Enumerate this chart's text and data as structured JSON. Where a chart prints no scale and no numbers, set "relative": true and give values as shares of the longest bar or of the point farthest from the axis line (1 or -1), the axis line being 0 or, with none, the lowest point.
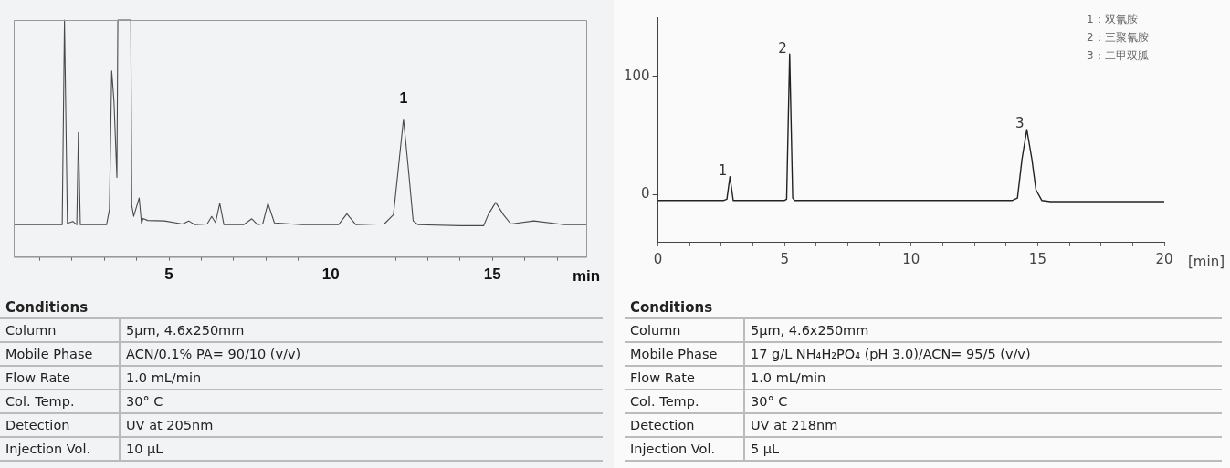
{
  "chart_data": [
    {
      "type": "line",
      "relative": true,
      "xlabel": "min",
      "xlim": [
        0.2,
        17.9
      ],
      "xticks": [
        {
          "value": 1,
          "label": null
        },
        {
          "value": 2,
          "label": null
        },
        {
          "value": 3,
          "label": null
        },
        {
          "value": 4,
          "label": null
        },
        5,
        {
          "value": 6,
          "label": null
        },
        {
          "value": 7,
          "label": null
        },
        {
          "value": 8,
          "label": null
        },
        {
          "value": 9,
          "label": null
        },
        10,
        {
          "value": 11,
          "label": null
        },
        {
          "value": 12,
          "label": null
        },
        {
          "value": 13,
          "label": null
        },
        {
          "value": 14,
          "label": null
        },
        15,
        {
          "value": 16,
          "label": null
        },
        {
          "value": 17,
          "label": null
        }
      ],
      "series": [
        {
          "color": "#4a4a4a",
          "x": [
            0.2,
            1.7,
            1.77,
            1.86,
            2.03,
            2.15,
            2.2,
            2.26,
            3.07,
            3.16,
            3.23,
            3.3,
            3.39,
            3.42,
            3.82,
            3.85,
            3.91,
            4.08,
            4.15,
            4.2,
            4.34,
            4.86,
            5.42,
            5.61,
            5.8,
            6.18,
            6.32,
            6.44,
            6.57,
            6.7,
            7.31,
            7.56,
            7.74,
            7.9,
            8.06,
            8.26,
            9.11,
            10.24,
            10.5,
            10.78,
            11.66,
            11.94,
            12.08,
            12.25,
            12.41,
            12.55,
            12.7,
            14.01,
            14.73,
            14.87,
            15.1,
            15.34,
            15.57,
            16.28,
            17.23,
            17.9
          ],
          "values": [
            0.136,
            0.136,
            1,
            0.142,
            0.15,
            0.136,
            0.525,
            0.136,
            0.136,
            0.2,
            0.785,
            0.658,
            0.336,
            1,
            1,
            0.218,
            0.171,
            0.249,
            0.143,
            0.162,
            0.154,
            0.152,
            0.139,
            0.152,
            0.136,
            0.139,
            0.171,
            0.145,
            0.226,
            0.136,
            0.136,
            0.161,
            0.136,
            0.14,
            0.226,
            0.144,
            0.136,
            0.136,
            0.182,
            0.136,
            0.14,
            0.178,
            0.359,
            0.582,
            0.359,
            0.152,
            0.136,
            0.132,
            0.132,
            0.178,
            0.23,
            0.178,
            0.139,
            0.152,
            0.136,
            0.136
          ]
        }
      ],
      "annotations": [
        {
          "text": "1",
          "x": 12.25,
          "y": 0.582
        }
      ]
    },
    {
      "type": "other",
      "title": "Conditions",
      "annotations": [
        "Column",
        "5μm, 4.6x250mm",
        "Mobile Phase",
        "ACN/0.1% PA= 90/10 (v/v)",
        "Flow Rate",
        "1.0 mL/min",
        "Col. Temp.",
        "30° C",
        "Detection",
        "UV at 205nm",
        "Injection Vol.",
        "10 μL"
      ]
    },
    {
      "type": "line",
      "xlabel": "[min]",
      "xlim": [
        0,
        20
      ],
      "ylim": [
        -40,
        150
      ],
      "xticks": [
        0,
        {
          "value": 1.25,
          "label": null
        },
        {
          "value": 2.5,
          "label": null
        },
        {
          "value": 3.75,
          "label": null
        },
        5,
        {
          "value": 6.25,
          "label": null
        },
        {
          "value": 7.5,
          "label": null
        },
        {
          "value": 8.75,
          "label": null
        },
        10,
        {
          "value": 11.25,
          "label": null
        },
        {
          "value": 12.5,
          "label": null
        },
        {
          "value": 13.75,
          "label": null
        },
        15,
        {
          "value": 16.25,
          "label": null
        },
        {
          "value": 17.5,
          "label": null
        },
        {
          "value": 18.75,
          "label": null
        },
        20
      ],
      "yticks": [
        0,
        100
      ],
      "series": [
        {
          "color": "#222222",
          "x": [
            0,
            2.6,
            2.72,
            2.84,
            2.97,
            3.1,
            5.0,
            5.08,
            5.2,
            5.32,
            5.4,
            14.0,
            14.2,
            14.38,
            14.57,
            14.77,
            14.93,
            15.16,
            15.5,
            20
          ],
          "values": [
            -5,
            -5,
            -4,
            15,
            -5,
            -5,
            -5,
            -4,
            119,
            -3,
            -5,
            -5,
            -3,
            30,
            55,
            30,
            4,
            -5,
            -6,
            -6
          ]
        }
      ],
      "annotations": [
        {
          "text": "1",
          "x": 2.84,
          "y": 15
        },
        {
          "text": "2",
          "x": 5.2,
          "y": 119
        },
        {
          "text": "3",
          "x": 14.57,
          "y": 55
        },
        "1：双氰胺",
        "2：三聚氰胺",
        "3：二甲双胍"
      ]
    },
    {
      "type": "other",
      "title": "Conditions",
      "annotations": [
        "Column",
        "5μm, 4.6x250mm",
        "Mobile Phase",
        "17 g/L NH₄H₂PO₄ (pH 3.0)/ACN= 95/5 (v/v)",
        "Flow Rate",
        "1.0 mL/min",
        "Col. Temp.",
        "30° C",
        "Detection",
        "UV at 218nm",
        "Injection Vol.",
        "5 μL"
      ]
    }
  ]
}
